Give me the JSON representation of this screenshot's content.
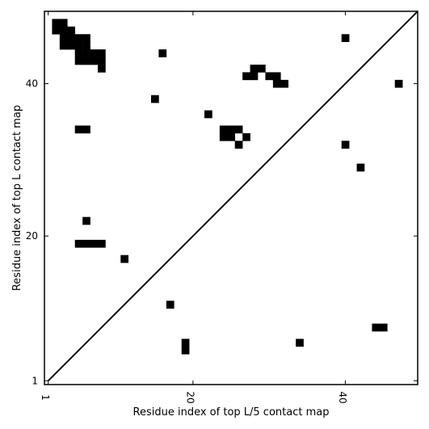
{
  "chart_data": {
    "type": "heatmap",
    "title": "",
    "xlabel": "Residue index of top L/5 contact map",
    "ylabel": "Residue index of top L contact map",
    "xlim": [
      0.5,
      49.5
    ],
    "ylim": [
      0.5,
      49.5
    ],
    "xticks": [
      1,
      20,
      40
    ],
    "yticks": [
      1,
      20,
      40
    ],
    "grid": false,
    "diagonal_line": true,
    "cell_color": "#000000",
    "background": "#ffffff",
    "upper_left_contacts": [
      [
        2,
        48
      ],
      [
        3,
        48
      ],
      [
        2,
        47
      ],
      [
        3,
        47
      ],
      [
        4,
        47
      ],
      [
        3,
        46
      ],
      [
        4,
        46
      ],
      [
        5,
        46
      ],
      [
        6,
        46
      ],
      [
        3,
        45
      ],
      [
        4,
        45
      ],
      [
        5,
        45
      ],
      [
        6,
        45
      ],
      [
        5,
        44
      ],
      [
        6,
        44
      ],
      [
        7,
        44
      ],
      [
        8,
        44
      ],
      [
        5,
        43
      ],
      [
        6,
        43
      ],
      [
        7,
        43
      ],
      [
        8,
        43
      ],
      [
        8,
        42
      ],
      [
        16,
        44
      ],
      [
        40,
        46
      ],
      [
        28,
        42
      ],
      [
        29,
        42
      ],
      [
        27,
        41
      ],
      [
        28,
        41
      ],
      [
        30,
        41
      ],
      [
        31,
        41
      ],
      [
        31,
        40
      ],
      [
        32,
        40
      ],
      [
        47,
        40
      ],
      [
        15,
        38
      ],
      [
        22,
        36
      ],
      [
        5,
        34
      ],
      [
        6,
        34
      ],
      [
        24,
        34
      ],
      [
        25,
        34
      ],
      [
        26,
        34
      ],
      [
        24,
        33
      ],
      [
        25,
        33
      ],
      [
        27,
        33
      ],
      [
        26,
        32
      ],
      [
        40,
        32
      ],
      [
        42,
        29
      ],
      [
        6,
        22
      ],
      [
        5,
        19
      ],
      [
        6,
        19
      ],
      [
        7,
        19
      ],
      [
        8,
        19
      ],
      [
        11,
        17
      ]
    ],
    "lower_right_contacts": [
      [
        17,
        11
      ],
      [
        19,
        6
      ],
      [
        19,
        5
      ],
      [
        34,
        6
      ],
      [
        44,
        8
      ],
      [
        45,
        8
      ]
    ]
  }
}
